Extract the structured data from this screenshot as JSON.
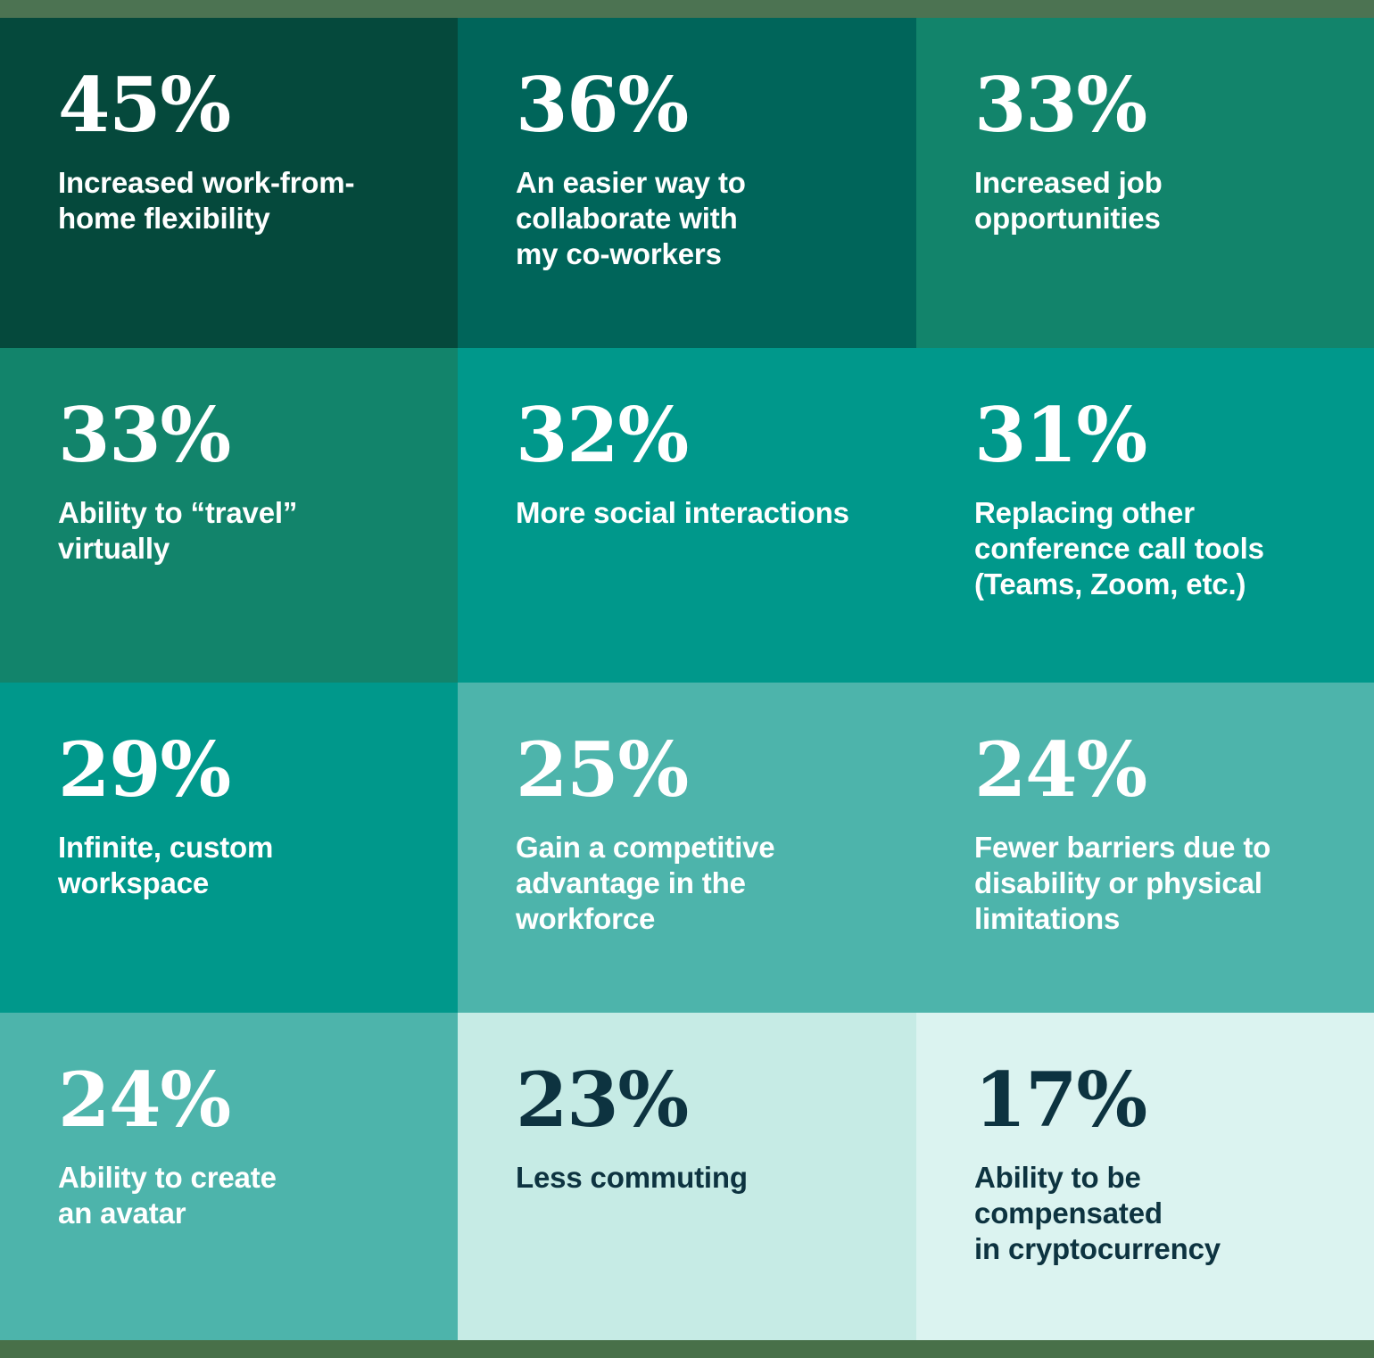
{
  "page": {
    "top_band_color": "#4c7352",
    "bottom_band_color": "#487049"
  },
  "chart_data": {
    "type": "table",
    "title": "",
    "unit": "%",
    "layout": "4-row by 3-column stat-tile grid, values descending in reading order, background gradient dark green to light mint",
    "categories": [
      "Increased work-from-home flexibility",
      "An easier way to collaborate with my co-workers",
      "Increased job opportunities",
      "Ability to “travel” virtually",
      "More social interactions",
      "Replacing other conference call tools (Teams, Zoom, etc.)",
      "Infinite, custom workspace",
      "Gain a competitive advantage in the workforce",
      "Fewer barriers due to disability or physical limitations",
      "Ability to create an avatar",
      "Less commuting",
      "Ability to be compensated in cryptocurrency"
    ],
    "values": [
      45,
      36,
      33,
      33,
      32,
      31,
      29,
      25,
      24,
      24,
      23,
      17
    ]
  },
  "cells": [
    {
      "value": "45%",
      "label": "Increased work-from-\nhome flexibility",
      "bg": "#05493c",
      "fg": "#ffffff"
    },
    {
      "value": "36%",
      "label": "An easier way to\ncollaborate with\nmy co-workers",
      "bg": "#00655a",
      "fg": "#ffffff"
    },
    {
      "value": "33%",
      "label": "Increased job\nopportunities",
      "bg": "#12846b",
      "fg": "#ffffff"
    },
    {
      "value": "33%",
      "label": "Ability to “travel”\nvirtually",
      "bg": "#12846b",
      "fg": "#ffffff"
    },
    {
      "value": "32%",
      "label": "More social interactions",
      "bg": "#00988b",
      "fg": "#ffffff"
    },
    {
      "value": "31%",
      "label": "Replacing other\nconference call tools\n(Teams, Zoom, etc.)",
      "bg": "#00988b",
      "fg": "#ffffff"
    },
    {
      "value": "29%",
      "label": "Infinite, custom\nworkspace",
      "bg": "#00988b",
      "fg": "#ffffff"
    },
    {
      "value": "25%",
      "label": "Gain a competitive\nadvantage in the\nworkforce",
      "bg": "#4db4ab",
      "fg": "#ffffff"
    },
    {
      "value": "24%",
      "label": "Fewer barriers due to\ndisability or physical\nlimitations",
      "bg": "#4db4ab",
      "fg": "#ffffff"
    },
    {
      "value": "24%",
      "label": "Ability to create\nan avatar",
      "bg": "#4db4ab",
      "fg": "#ffffff"
    },
    {
      "value": "23%",
      "label": "Less commuting",
      "bg": "#c6ebe5",
      "fg": "#0d3340"
    },
    {
      "value": "17%",
      "label": "Ability to be\ncompensated\nin cryptocurrency",
      "bg": "#dbf3f0",
      "fg": "#0d3340"
    }
  ]
}
